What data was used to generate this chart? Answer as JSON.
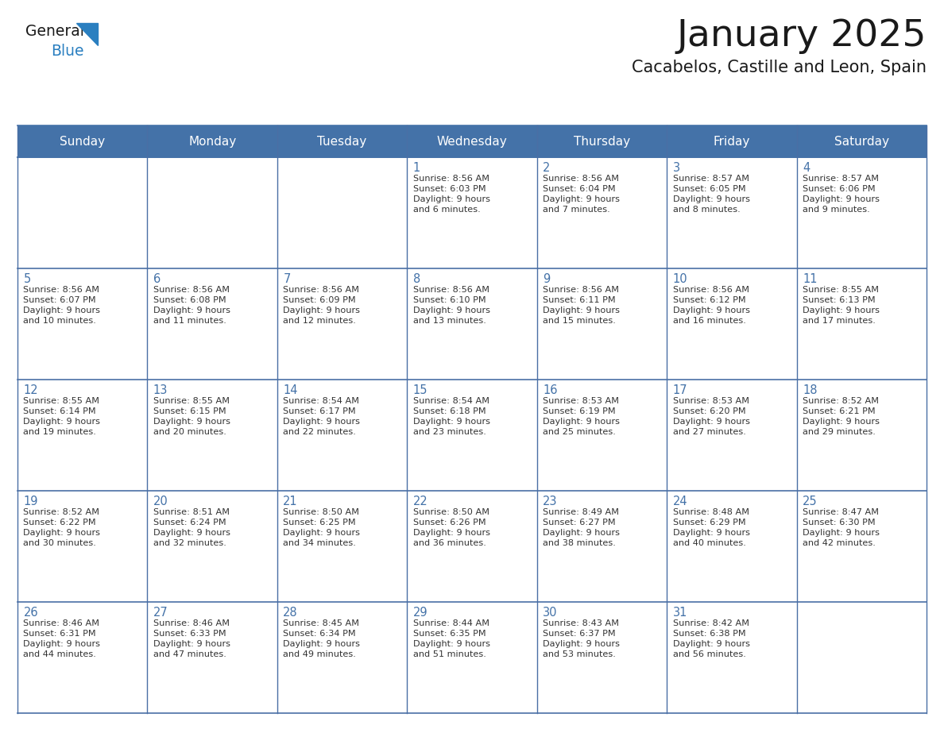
{
  "title": "January 2025",
  "subtitle": "Cacabelos, Castille and Leon, Spain",
  "days_of_week": [
    "Sunday",
    "Monday",
    "Tuesday",
    "Wednesday",
    "Thursday",
    "Friday",
    "Saturday"
  ],
  "header_bg": "#4472a8",
  "header_text": "#ffffff",
  "cell_bg": "#ffffff",
  "cell_bg_alt": "#f0f4f8",
  "border_color_header": "#4472a8",
  "border_color_row": "#4a6fa5",
  "title_color": "#1a1a1a",
  "subtitle_color": "#1a1a1a",
  "day_num_color": "#4472a8",
  "cell_text_color": "#333333",
  "logo_text_color": "#1a1a1a",
  "logo_blue_color": "#2a7fc0",
  "calendar_data": [
    [
      null,
      null,
      null,
      {
        "day": 1,
        "sunrise": "8:56 AM",
        "sunset": "6:03 PM",
        "daylight": "9 hours and 6 minutes."
      },
      {
        "day": 2,
        "sunrise": "8:56 AM",
        "sunset": "6:04 PM",
        "daylight": "9 hours and 7 minutes."
      },
      {
        "day": 3,
        "sunrise": "8:57 AM",
        "sunset": "6:05 PM",
        "daylight": "9 hours and 8 minutes."
      },
      {
        "day": 4,
        "sunrise": "8:57 AM",
        "sunset": "6:06 PM",
        "daylight": "9 hours and 9 minutes."
      }
    ],
    [
      {
        "day": 5,
        "sunrise": "8:56 AM",
        "sunset": "6:07 PM",
        "daylight": "9 hours and 10 minutes."
      },
      {
        "day": 6,
        "sunrise": "8:56 AM",
        "sunset": "6:08 PM",
        "daylight": "9 hours and 11 minutes."
      },
      {
        "day": 7,
        "sunrise": "8:56 AM",
        "sunset": "6:09 PM",
        "daylight": "9 hours and 12 minutes."
      },
      {
        "day": 8,
        "sunrise": "8:56 AM",
        "sunset": "6:10 PM",
        "daylight": "9 hours and 13 minutes."
      },
      {
        "day": 9,
        "sunrise": "8:56 AM",
        "sunset": "6:11 PM",
        "daylight": "9 hours and 15 minutes."
      },
      {
        "day": 10,
        "sunrise": "8:56 AM",
        "sunset": "6:12 PM",
        "daylight": "9 hours and 16 minutes."
      },
      {
        "day": 11,
        "sunrise": "8:55 AM",
        "sunset": "6:13 PM",
        "daylight": "9 hours and 17 minutes."
      }
    ],
    [
      {
        "day": 12,
        "sunrise": "8:55 AM",
        "sunset": "6:14 PM",
        "daylight": "9 hours and 19 minutes."
      },
      {
        "day": 13,
        "sunrise": "8:55 AM",
        "sunset": "6:15 PM",
        "daylight": "9 hours and 20 minutes."
      },
      {
        "day": 14,
        "sunrise": "8:54 AM",
        "sunset": "6:17 PM",
        "daylight": "9 hours and 22 minutes."
      },
      {
        "day": 15,
        "sunrise": "8:54 AM",
        "sunset": "6:18 PM",
        "daylight": "9 hours and 23 minutes."
      },
      {
        "day": 16,
        "sunrise": "8:53 AM",
        "sunset": "6:19 PM",
        "daylight": "9 hours and 25 minutes."
      },
      {
        "day": 17,
        "sunrise": "8:53 AM",
        "sunset": "6:20 PM",
        "daylight": "9 hours and 27 minutes."
      },
      {
        "day": 18,
        "sunrise": "8:52 AM",
        "sunset": "6:21 PM",
        "daylight": "9 hours and 29 minutes."
      }
    ],
    [
      {
        "day": 19,
        "sunrise": "8:52 AM",
        "sunset": "6:22 PM",
        "daylight": "9 hours and 30 minutes."
      },
      {
        "day": 20,
        "sunrise": "8:51 AM",
        "sunset": "6:24 PM",
        "daylight": "9 hours and 32 minutes."
      },
      {
        "day": 21,
        "sunrise": "8:50 AM",
        "sunset": "6:25 PM",
        "daylight": "9 hours and 34 minutes."
      },
      {
        "day": 22,
        "sunrise": "8:50 AM",
        "sunset": "6:26 PM",
        "daylight": "9 hours and 36 minutes."
      },
      {
        "day": 23,
        "sunrise": "8:49 AM",
        "sunset": "6:27 PM",
        "daylight": "9 hours and 38 minutes."
      },
      {
        "day": 24,
        "sunrise": "8:48 AM",
        "sunset": "6:29 PM",
        "daylight": "9 hours and 40 minutes."
      },
      {
        "day": 25,
        "sunrise": "8:47 AM",
        "sunset": "6:30 PM",
        "daylight": "9 hours and 42 minutes."
      }
    ],
    [
      {
        "day": 26,
        "sunrise": "8:46 AM",
        "sunset": "6:31 PM",
        "daylight": "9 hours and 44 minutes."
      },
      {
        "day": 27,
        "sunrise": "8:46 AM",
        "sunset": "6:33 PM",
        "daylight": "9 hours and 47 minutes."
      },
      {
        "day": 28,
        "sunrise": "8:45 AM",
        "sunset": "6:34 PM",
        "daylight": "9 hours and 49 minutes."
      },
      {
        "day": 29,
        "sunrise": "8:44 AM",
        "sunset": "6:35 PM",
        "daylight": "9 hours and 51 minutes."
      },
      {
        "day": 30,
        "sunrise": "8:43 AM",
        "sunset": "6:37 PM",
        "daylight": "9 hours and 53 minutes."
      },
      {
        "day": 31,
        "sunrise": "8:42 AM",
        "sunset": "6:38 PM",
        "daylight": "9 hours and 56 minutes."
      },
      null
    ]
  ]
}
